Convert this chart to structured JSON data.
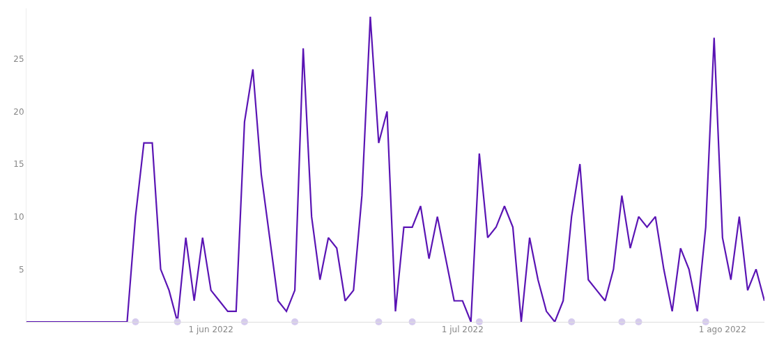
{
  "chart_data": {
    "type": "line",
    "xlim": [
      "2022-05-10",
      "2022-08-06"
    ],
    "xticks": [
      {
        "value": "2022-06-01",
        "label": "1 jun 2022"
      },
      {
        "value": "2022-07-01",
        "label": "1 jul 2022"
      },
      {
        "value": "2022-08-01",
        "label": "1 ago 2022"
      }
    ],
    "ylim": [
      0,
      29.8
    ],
    "yticks": [
      5,
      10,
      15,
      20,
      25
    ],
    "grid": false,
    "series": [
      {
        "color": "#5a14b4",
        "marker": "none",
        "line_style": "solid",
        "x": [
          "2022-05-10",
          "2022-05-11",
          "2022-05-12",
          "2022-05-13",
          "2022-05-14",
          "2022-05-15",
          "2022-05-16",
          "2022-05-17",
          "2022-05-18",
          "2022-05-19",
          "2022-05-20",
          "2022-05-21",
          "2022-05-22",
          "2022-05-23",
          "2022-05-24",
          "2022-05-25",
          "2022-05-26",
          "2022-05-27",
          "2022-05-28",
          "2022-05-29",
          "2022-05-30",
          "2022-05-31",
          "2022-06-01",
          "2022-06-02",
          "2022-06-03",
          "2022-06-04",
          "2022-06-05",
          "2022-06-06",
          "2022-06-07",
          "2022-06-08",
          "2022-06-09",
          "2022-06-10",
          "2022-06-11",
          "2022-06-12",
          "2022-06-13",
          "2022-06-14",
          "2022-06-15",
          "2022-06-16",
          "2022-06-17",
          "2022-06-18",
          "2022-06-19",
          "2022-06-20",
          "2022-06-21",
          "2022-06-22",
          "2022-06-23",
          "2022-06-24",
          "2022-06-25",
          "2022-06-26",
          "2022-06-27",
          "2022-06-28",
          "2022-06-29",
          "2022-06-30",
          "2022-07-01",
          "2022-07-02",
          "2022-07-03",
          "2022-07-04",
          "2022-07-05",
          "2022-07-06",
          "2022-07-07",
          "2022-07-08",
          "2022-07-09",
          "2022-07-10",
          "2022-07-11",
          "2022-07-12",
          "2022-07-13",
          "2022-07-14",
          "2022-07-15",
          "2022-07-16",
          "2022-07-17",
          "2022-07-18",
          "2022-07-19",
          "2022-07-20",
          "2022-07-21",
          "2022-07-22",
          "2022-07-23",
          "2022-07-24",
          "2022-07-25",
          "2022-07-26",
          "2022-07-27",
          "2022-07-28",
          "2022-07-29",
          "2022-07-30",
          "2022-07-31",
          "2022-08-01",
          "2022-08-02",
          "2022-08-03",
          "2022-08-04",
          "2022-08-05",
          "2022-08-06"
        ],
        "values": [
          0,
          0,
          0,
          0,
          0,
          0,
          0,
          0,
          0,
          0,
          0,
          0,
          0,
          10,
          17,
          17,
          5,
          3,
          0,
          8,
          2,
          8,
          3,
          2,
          1,
          1,
          19,
          24,
          14,
          8,
          2,
          1,
          3,
          26,
          10,
          4,
          8,
          7,
          2,
          3,
          12,
          29,
          17,
          20,
          1,
          9,
          9,
          11,
          6,
          10,
          6,
          2,
          2,
          0,
          16,
          8,
          9,
          11,
          9,
          0,
          8,
          4,
          1,
          0,
          2,
          10,
          15,
          4,
          3,
          2,
          5,
          12,
          7,
          10,
          9,
          10,
          5,
          1,
          7,
          5,
          1,
          9,
          27,
          8,
          4,
          10,
          3,
          5,
          2
        ]
      },
      {
        "type": "scatter",
        "color": "#d6cbee",
        "marker": "circle",
        "x": [
          "2022-05-23",
          "2022-05-28",
          "2022-06-05",
          "2022-06-11",
          "2022-06-21",
          "2022-06-25",
          "2022-07-03",
          "2022-07-14",
          "2022-07-20",
          "2022-07-22",
          "2022-07-30"
        ],
        "values": [
          0,
          0,
          0,
          0,
          0,
          0,
          0,
          0,
          0,
          0,
          0
        ]
      }
    ]
  }
}
